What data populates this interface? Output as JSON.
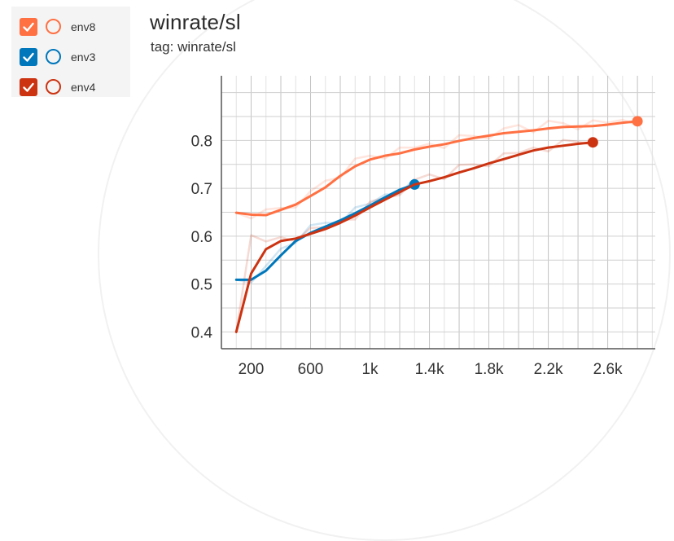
{
  "legend": [
    {
      "label": "env8",
      "color": "#ff7043",
      "checked": true
    },
    {
      "label": "env3",
      "color": "#0077bb",
      "checked": true
    },
    {
      "label": "env4",
      "color": "#cc3311",
      "checked": true
    }
  ],
  "chart": {
    "title": "winrate/sl",
    "subtitle": "tag: winrate/sl"
  },
  "chart_data": {
    "type": "line",
    "title": "winrate/sl",
    "subtitle": "tag: winrate/sl",
    "xlabel": "",
    "ylabel": "",
    "xlim": [
      0,
      2920
    ],
    "ylim": [
      0.365,
      0.935
    ],
    "x_ticks": [
      200,
      600,
      1000,
      1400,
      1800,
      2200,
      2600
    ],
    "x_tick_labels": [
      "200",
      "600",
      "1k",
      "1.4k",
      "1.8k",
      "2.2k",
      "2.6k"
    ],
    "y_ticks": [
      0.4,
      0.5,
      0.6,
      0.7,
      0.8
    ],
    "y_tick_labels": [
      "0.4",
      "0.5",
      "0.6",
      "0.7",
      "0.8"
    ],
    "grid": true,
    "series": [
      {
        "name": "env8",
        "color": "#ff7043",
        "x": [
          100,
          200,
          300,
          400,
          500,
          600,
          700,
          800,
          900,
          1000,
          1100,
          1200,
          1300,
          1400,
          1500,
          1600,
          1700,
          1800,
          1900,
          2000,
          2100,
          2200,
          2300,
          2400,
          2500,
          2600,
          2700,
          2800
        ],
        "values": [
          0.649,
          0.645,
          0.644,
          0.655,
          0.666,
          0.684,
          0.702,
          0.726,
          0.746,
          0.76,
          0.768,
          0.773,
          0.781,
          0.787,
          0.792,
          0.799,
          0.805,
          0.81,
          0.815,
          0.818,
          0.821,
          0.825,
          0.828,
          0.829,
          0.83,
          0.833,
          0.837,
          0.84
        ]
      },
      {
        "name": "env3",
        "color": "#0077bb",
        "x": [
          100,
          200,
          300,
          400,
          500,
          600,
          700,
          800,
          900,
          1000,
          1100,
          1200,
          1300
        ],
        "values": [
          0.509,
          0.509,
          0.528,
          0.56,
          0.59,
          0.607,
          0.62,
          0.633,
          0.648,
          0.664,
          0.681,
          0.697,
          0.708
        ]
      },
      {
        "name": "env4",
        "color": "#cc3311",
        "x": [
          100,
          200,
          300,
          400,
          500,
          600,
          700,
          800,
          900,
          1000,
          1100,
          1200,
          1300,
          1400,
          1500,
          1600,
          1700,
          1800,
          1900,
          2000,
          2100,
          2200,
          2300,
          2400,
          2500
        ],
        "values": [
          0.4,
          0.522,
          0.573,
          0.59,
          0.595,
          0.605,
          0.615,
          0.628,
          0.643,
          0.66,
          0.676,
          0.692,
          0.708,
          0.715,
          0.723,
          0.733,
          0.742,
          0.752,
          0.761,
          0.77,
          0.779,
          0.785,
          0.789,
          0.793,
          0.796
        ]
      }
    ]
  }
}
